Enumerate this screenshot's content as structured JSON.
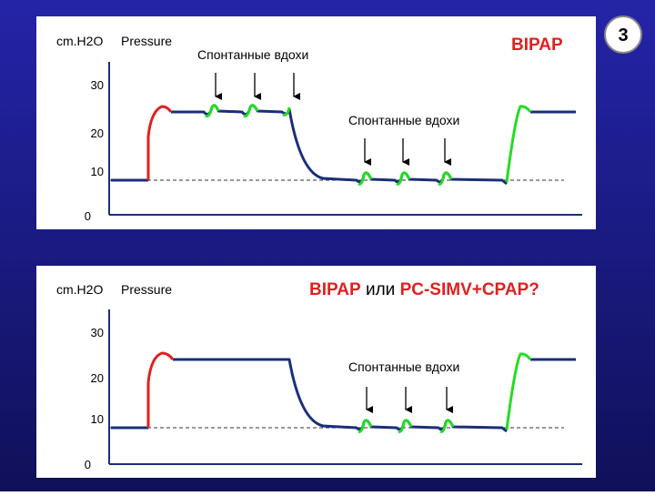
{
  "slide_number": "3",
  "panels": [
    {
      "unit": "cm.H2O",
      "label": "Pressure",
      "note_top": "Спонтанные вдохи",
      "title": "BIPAP",
      "note_low": "Спонтанные вдохи",
      "ticks": [
        "30",
        "20",
        "10",
        "0"
      ]
    },
    {
      "unit": "cm.H2O",
      "label": "Pressure",
      "title_parts": [
        "BIPAP",
        "или",
        "PC-SIMV+CPAP?"
      ],
      "note_low": "Спонтанные вдохи",
      "ticks": [
        "30",
        "20",
        "10",
        "0"
      ]
    }
  ]
}
